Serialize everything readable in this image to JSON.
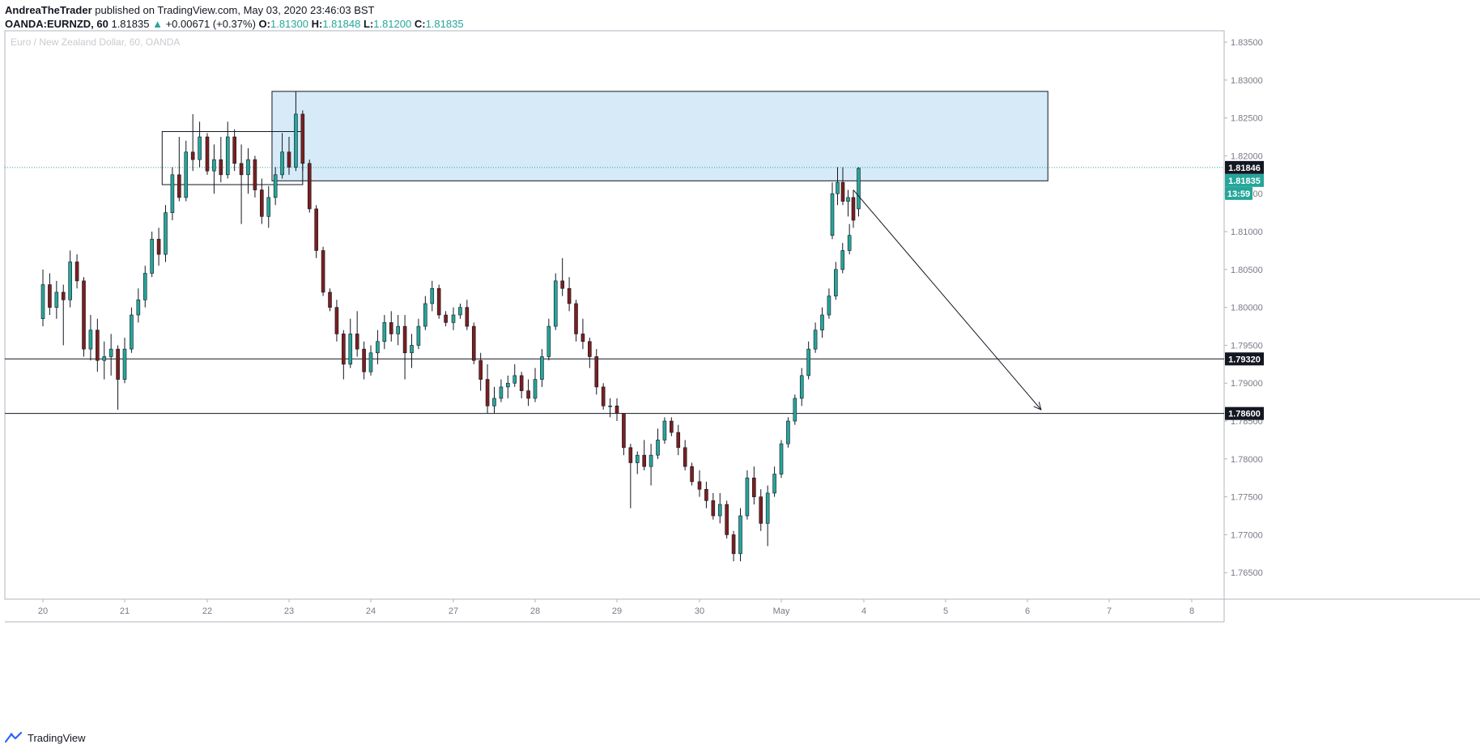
{
  "header": {
    "author": "AndreaTheTrader",
    "published_text": "published on TradingView.com, May 03, 2020 23:46:03 BST"
  },
  "symbol_line": {
    "symbol": "OANDA:EURNZD, 60",
    "last": "1.81835",
    "arrow": "▲",
    "change": "+0.00671 (+0.37%)",
    "o_label": "O:",
    "o_value": "1.81300",
    "h_label": "H:",
    "h_value": "1.81848",
    "l_label": "L:",
    "l_value": "1.81200",
    "c_label": "C:",
    "c_value": "1.81835"
  },
  "footer": {
    "brand": "TradingView",
    "logo_icon": "tradingview-logo-icon"
  },
  "colors": {
    "up": "#26a69a",
    "down": "#7b1f1f",
    "candle_outline": "#131722",
    "zone_fill": "#d6eaf8",
    "zone_stroke": "#131722",
    "price_line": "#26a69a",
    "axis_text": "#787b86",
    "label_dark": "#131722"
  },
  "chart_data": {
    "type": "candlestick",
    "title": "Euro / New Zealand Dollar, 60, OANDA",
    "x_tick_labels": [
      "20",
      "21",
      "22",
      "23",
      "24",
      "27",
      "28",
      "29",
      "30",
      "May",
      "4",
      "5",
      "6",
      "7",
      "8"
    ],
    "y_tick_labels": [
      "1.83500",
      "1.83000",
      "1.82500",
      "1.82000",
      "1.81500",
      "1.81000",
      "1.80500",
      "1.80000",
      "1.79500",
      "1.79000",
      "1.78500",
      "1.78000",
      "1.77500",
      "1.77000",
      "1.76500"
    ],
    "ylim": [
      1.7615,
      1.8365
    ],
    "price_labels": [
      {
        "text": "1.81846",
        "value": 1.81846,
        "style": "dark"
      },
      {
        "text": "1.81835",
        "value": 1.81835,
        "style": "green"
      },
      {
        "text": "13:59",
        "style": "green-timer"
      },
      {
        "text": "1.79320",
        "value": 1.7932,
        "style": "dark"
      },
      {
        "text": "1.78600",
        "value": 1.786,
        "style": "dark"
      }
    ],
    "horizontal_lines": [
      1.7932,
      1.786
    ],
    "dotted_line": 1.81846,
    "last_price": 1.81835,
    "resistance_zone": {
      "x0": "Apr 22 19:00",
      "x1": "May 6 06:00",
      "y0": 1.8285,
      "y1": 1.8167
    },
    "consolidation_box": {
      "x0": "Apr 21 11:00",
      "x1": "Apr 23 04:00",
      "y0": 1.8232,
      "y1": 1.8162
    },
    "arrow": {
      "x0": "May 3 23:00",
      "y0": 1.8155,
      "x1": "May 6 04:00",
      "y1": 1.7865
    },
    "candles": [
      {
        "t": "Apr 20 00:00",
        "o": 1.7985,
        "h": 1.805,
        "l": 1.7975,
        "c": 1.803
      },
      {
        "t": "Apr 20 02:00",
        "o": 1.803,
        "h": 1.8045,
        "l": 1.799,
        "c": 1.8,
        "dir": "down"
      },
      {
        "t": "Apr 20 04:00",
        "o": 1.8,
        "h": 1.8035,
        "l": 1.7985,
        "c": 1.802
      },
      {
        "t": "Apr 20 06:00",
        "o": 1.802,
        "h": 1.803,
        "l": 1.795,
        "c": 1.801,
        "dir": "down"
      },
      {
        "t": "Apr 20 08:00",
        "o": 1.801,
        "h": 1.8075,
        "l": 1.8,
        "c": 1.806
      },
      {
        "t": "Apr 20 10:00",
        "o": 1.806,
        "h": 1.807,
        "l": 1.8025,
        "c": 1.8035,
        "dir": "down"
      },
      {
        "t": "Apr 20 12:00",
        "o": 1.8035,
        "h": 1.804,
        "l": 1.7935,
        "c": 1.7945,
        "dir": "down"
      },
      {
        "t": "Apr 20 14:00",
        "o": 1.7945,
        "h": 1.799,
        "l": 1.793,
        "c": 1.797
      },
      {
        "t": "Apr 20 16:00",
        "o": 1.797,
        "h": 1.7985,
        "l": 1.7915,
        "c": 1.793,
        "dir": "down"
      },
      {
        "t": "Apr 20 18:00",
        "o": 1.793,
        "h": 1.7955,
        "l": 1.7905,
        "c": 1.7935
      },
      {
        "t": "Apr 20 20:00",
        "o": 1.7935,
        "h": 1.7965,
        "l": 1.791,
        "c": 1.7945
      },
      {
        "t": "Apr 20 22:00",
        "o": 1.7945,
        "h": 1.795,
        "l": 1.7865,
        "c": 1.7905,
        "dir": "down"
      },
      {
        "t": "Apr 21 00:00",
        "o": 1.7905,
        "h": 1.796,
        "l": 1.79,
        "c": 1.7945
      },
      {
        "t": "Apr 21 02:00",
        "o": 1.7945,
        "h": 1.8,
        "l": 1.794,
        "c": 1.799
      },
      {
        "t": "Apr 21 04:00",
        "o": 1.799,
        "h": 1.8025,
        "l": 1.798,
        "c": 1.801
      },
      {
        "t": "Apr 21 06:00",
        "o": 1.801,
        "h": 1.8055,
        "l": 1.8,
        "c": 1.8045
      },
      {
        "t": "Apr 21 08:00",
        "o": 1.8045,
        "h": 1.81,
        "l": 1.804,
        "c": 1.809
      },
      {
        "t": "Apr 21 10:00",
        "o": 1.809,
        "h": 1.8105,
        "l": 1.8055,
        "c": 1.807,
        "dir": "down"
      },
      {
        "t": "Apr 21 12:00",
        "o": 1.807,
        "h": 1.8135,
        "l": 1.806,
        "c": 1.8125
      },
      {
        "t": "Apr 21 14:00",
        "o": 1.8125,
        "h": 1.8185,
        "l": 1.8115,
        "c": 1.8175
      },
      {
        "t": "Apr 21 16:00",
        "o": 1.8175,
        "h": 1.8225,
        "l": 1.814,
        "c": 1.8145,
        "dir": "down"
      },
      {
        "t": "Apr 21 18:00",
        "o": 1.8145,
        "h": 1.822,
        "l": 1.814,
        "c": 1.8205
      },
      {
        "t": "Apr 21 20:00",
        "o": 1.8205,
        "h": 1.8255,
        "l": 1.818,
        "c": 1.8195,
        "dir": "down"
      },
      {
        "t": "Apr 21 22:00",
        "o": 1.8195,
        "h": 1.8245,
        "l": 1.8185,
        "c": 1.8225
      },
      {
        "t": "Apr 22 00:00",
        "o": 1.8225,
        "h": 1.823,
        "l": 1.8175,
        "c": 1.818,
        "dir": "down"
      },
      {
        "t": "Apr 22 02:00",
        "o": 1.818,
        "h": 1.8215,
        "l": 1.815,
        "c": 1.8195
      },
      {
        "t": "Apr 22 04:00",
        "o": 1.8195,
        "h": 1.8225,
        "l": 1.8165,
        "c": 1.8175,
        "dir": "down"
      },
      {
        "t": "Apr 22 06:00",
        "o": 1.8175,
        "h": 1.8245,
        "l": 1.817,
        "c": 1.8225
      },
      {
        "t": "Apr 22 08:00",
        "o": 1.8225,
        "h": 1.8235,
        "l": 1.818,
        "c": 1.819,
        "dir": "down"
      },
      {
        "t": "Apr 22 10:00",
        "o": 1.819,
        "h": 1.8215,
        "l": 1.811,
        "c": 1.8175,
        "dir": "down"
      },
      {
        "t": "Apr 22 12:00",
        "o": 1.8175,
        "h": 1.821,
        "l": 1.815,
        "c": 1.8195
      },
      {
        "t": "Apr 22 14:00",
        "o": 1.8195,
        "h": 1.82,
        "l": 1.8145,
        "c": 1.8155,
        "dir": "down"
      },
      {
        "t": "Apr 22 16:00",
        "o": 1.8155,
        "h": 1.817,
        "l": 1.811,
        "c": 1.812,
        "dir": "down"
      },
      {
        "t": "Apr 22 18:00",
        "o": 1.812,
        "h": 1.816,
        "l": 1.8105,
        "c": 1.8145
      },
      {
        "t": "Apr 22 20:00",
        "o": 1.8145,
        "h": 1.8185,
        "l": 1.8135,
        "c": 1.8175
      },
      {
        "t": "Apr 22 22:00",
        "o": 1.8175,
        "h": 1.823,
        "l": 1.817,
        "c": 1.8205
      },
      {
        "t": "Apr 23 00:00",
        "o": 1.8205,
        "h": 1.8225,
        "l": 1.8175,
        "c": 1.8185,
        "dir": "down"
      },
      {
        "t": "Apr 23 02:00",
        "o": 1.8185,
        "h": 1.8285,
        "l": 1.818,
        "c": 1.8255
      },
      {
        "t": "Apr 23 04:00",
        "o": 1.8255,
        "h": 1.826,
        "l": 1.818,
        "c": 1.819,
        "dir": "down"
      },
      {
        "t": "Apr 23 06:00",
        "o": 1.819,
        "h": 1.8195,
        "l": 1.8125,
        "c": 1.813,
        "dir": "down"
      },
      {
        "t": "Apr 23 08:00",
        "o": 1.813,
        "h": 1.8135,
        "l": 1.8065,
        "c": 1.8075,
        "dir": "down"
      },
      {
        "t": "Apr 23 10:00",
        "o": 1.8075,
        "h": 1.808,
        "l": 1.8015,
        "c": 1.802,
        "dir": "down"
      },
      {
        "t": "Apr 23 12:00",
        "o": 1.802,
        "h": 1.8025,
        "l": 1.7995,
        "c": 1.8,
        "dir": "down"
      },
      {
        "t": "Apr 23 14:00",
        "o": 1.8,
        "h": 1.801,
        "l": 1.7955,
        "c": 1.7965,
        "dir": "down"
      },
      {
        "t": "Apr 23 16:00",
        "o": 1.7965,
        "h": 1.797,
        "l": 1.7905,
        "c": 1.7925,
        "dir": "down"
      },
      {
        "t": "Apr 23 18:00",
        "o": 1.7925,
        "h": 1.7985,
        "l": 1.792,
        "c": 1.7965
      },
      {
        "t": "Apr 23 20:00",
        "o": 1.7965,
        "h": 1.7995,
        "l": 1.7935,
        "c": 1.7945,
        "dir": "down"
      },
      {
        "t": "Apr 23 22:00",
        "o": 1.7945,
        "h": 1.7955,
        "l": 1.7905,
        "c": 1.7915,
        "dir": "down"
      },
      {
        "t": "Apr 24 00:00",
        "o": 1.7915,
        "h": 1.795,
        "l": 1.791,
        "c": 1.794
      },
      {
        "t": "Apr 24 02:00",
        "o": 1.794,
        "h": 1.797,
        "l": 1.7925,
        "c": 1.7955
      },
      {
        "t": "Apr 24 04:00",
        "o": 1.7955,
        "h": 1.799,
        "l": 1.7945,
        "c": 1.798
      },
      {
        "t": "Apr 24 06:00",
        "o": 1.798,
        "h": 1.7995,
        "l": 1.7955,
        "c": 1.7965,
        "dir": "down"
      },
      {
        "t": "Apr 24 08:00",
        "o": 1.7965,
        "h": 1.799,
        "l": 1.795,
        "c": 1.7975
      },
      {
        "t": "Apr 24 10:00",
        "o": 1.7975,
        "h": 1.799,
        "l": 1.7905,
        "c": 1.794,
        "dir": "down"
      },
      {
        "t": "Apr 24 12:00",
        "o": 1.794,
        "h": 1.7965,
        "l": 1.792,
        "c": 1.795
      },
      {
        "t": "Apr 24 14:00",
        "o": 1.795,
        "h": 1.7985,
        "l": 1.7945,
        "c": 1.7975
      },
      {
        "t": "Apr 24 16:00",
        "o": 1.7975,
        "h": 1.8015,
        "l": 1.797,
        "c": 1.8005
      },
      {
        "t": "Apr 24 18:00",
        "o": 1.8005,
        "h": 1.8035,
        "l": 1.7995,
        "c": 1.8025
      },
      {
        "t": "Apr 24 20:00",
        "o": 1.8025,
        "h": 1.803,
        "l": 1.7985,
        "c": 1.799,
        "dir": "down"
      },
      {
        "t": "Apr 24 22:00",
        "o": 1.799,
        "h": 1.7995,
        "l": 1.7975,
        "c": 1.798,
        "dir": "down"
      },
      {
        "t": "Apr 27 00:00",
        "o": 1.798,
        "h": 1.8,
        "l": 1.797,
        "c": 1.799
      },
      {
        "t": "Apr 27 02:00",
        "o": 1.799,
        "h": 1.8005,
        "l": 1.7985,
        "c": 1.8
      },
      {
        "t": "Apr 27 04:00",
        "o": 1.8,
        "h": 1.801,
        "l": 1.797,
        "c": 1.7975,
        "dir": "down"
      },
      {
        "t": "Apr 27 06:00",
        "o": 1.7975,
        "h": 1.798,
        "l": 1.7925,
        "c": 1.793,
        "dir": "down"
      },
      {
        "t": "Apr 27 08:00",
        "o": 1.793,
        "h": 1.794,
        "l": 1.789,
        "c": 1.7905,
        "dir": "down"
      },
      {
        "t": "Apr 27 10:00",
        "o": 1.7905,
        "h": 1.7925,
        "l": 1.786,
        "c": 1.787,
        "dir": "down"
      },
      {
        "t": "Apr 27 12:00",
        "o": 1.787,
        "h": 1.7895,
        "l": 1.786,
        "c": 1.788
      },
      {
        "t": "Apr 27 14:00",
        "o": 1.788,
        "h": 1.7905,
        "l": 1.7875,
        "c": 1.7895
      },
      {
        "t": "Apr 27 16:00",
        "o": 1.7895,
        "h": 1.791,
        "l": 1.788,
        "c": 1.79
      },
      {
        "t": "Apr 27 18:00",
        "o": 1.79,
        "h": 1.7925,
        "l": 1.7895,
        "c": 1.791
      },
      {
        "t": "Apr 27 20:00",
        "o": 1.791,
        "h": 1.7915,
        "l": 1.788,
        "c": 1.789,
        "dir": "down"
      },
      {
        "t": "Apr 27 22:00",
        "o": 1.789,
        "h": 1.7905,
        "l": 1.787,
        "c": 1.788,
        "dir": "down"
      },
      {
        "t": "Apr 28 00:00",
        "o": 1.788,
        "h": 1.792,
        "l": 1.7875,
        "c": 1.7905
      },
      {
        "t": "Apr 28 02:00",
        "o": 1.7905,
        "h": 1.7945,
        "l": 1.7895,
        "c": 1.7935
      },
      {
        "t": "Apr 28 04:00",
        "o": 1.7935,
        "h": 1.7985,
        "l": 1.793,
        "c": 1.7975
      },
      {
        "t": "Apr 28 06:00",
        "o": 1.7975,
        "h": 1.8045,
        "l": 1.797,
        "c": 1.8035
      },
      {
        "t": "Apr 28 08:00",
        "o": 1.8035,
        "h": 1.8065,
        "l": 1.8015,
        "c": 1.8025,
        "dir": "down"
      },
      {
        "t": "Apr 28 10:00",
        "o": 1.8025,
        "h": 1.804,
        "l": 1.7995,
        "c": 1.8005,
        "dir": "down"
      },
      {
        "t": "Apr 28 12:00",
        "o": 1.8005,
        "h": 1.801,
        "l": 1.7955,
        "c": 1.7965,
        "dir": "down"
      },
      {
        "t": "Apr 28 14:00",
        "o": 1.7965,
        "h": 1.7985,
        "l": 1.7945,
        "c": 1.7955,
        "dir": "down"
      },
      {
        "t": "Apr 28 16:00",
        "o": 1.7955,
        "h": 1.796,
        "l": 1.792,
        "c": 1.7935,
        "dir": "down"
      },
      {
        "t": "Apr 28 18:00",
        "o": 1.7935,
        "h": 1.7945,
        "l": 1.7885,
        "c": 1.7895,
        "dir": "down"
      },
      {
        "t": "Apr 28 20:00",
        "o": 1.7895,
        "h": 1.79,
        "l": 1.7865,
        "c": 1.787,
        "dir": "down"
      },
      {
        "t": "Apr 28 22:00",
        "o": 1.787,
        "h": 1.788,
        "l": 1.7855,
        "c": 1.787
      },
      {
        "t": "Apr 29 00:00",
        "o": 1.787,
        "h": 1.788,
        "l": 1.785,
        "c": 1.786,
        "dir": "down"
      },
      {
        "t": "Apr 29 02:00",
        "o": 1.786,
        "h": 1.786,
        "l": 1.7805,
        "c": 1.7815,
        "dir": "down"
      },
      {
        "t": "Apr 29 04:00",
        "o": 1.7815,
        "h": 1.782,
        "l": 1.7735,
        "c": 1.7795,
        "dir": "down"
      },
      {
        "t": "Apr 29 06:00",
        "o": 1.7795,
        "h": 1.781,
        "l": 1.778,
        "c": 1.7805
      },
      {
        "t": "Apr 29 08:00",
        "o": 1.7805,
        "h": 1.7825,
        "l": 1.7785,
        "c": 1.779,
        "dir": "down"
      },
      {
        "t": "Apr 29 10:00",
        "o": 1.779,
        "h": 1.782,
        "l": 1.7765,
        "c": 1.7805
      },
      {
        "t": "Apr 29 12:00",
        "o": 1.7805,
        "h": 1.784,
        "l": 1.78,
        "c": 1.7825
      },
      {
        "t": "Apr 29 14:00",
        "o": 1.7825,
        "h": 1.7855,
        "l": 1.782,
        "c": 1.785
      },
      {
        "t": "Apr 29 16:00",
        "o": 1.785,
        "h": 1.7855,
        "l": 1.783,
        "c": 1.7835,
        "dir": "down"
      },
      {
        "t": "Apr 29 18:00",
        "o": 1.7835,
        "h": 1.7845,
        "l": 1.7805,
        "c": 1.7815,
        "dir": "down"
      },
      {
        "t": "Apr 29 20:00",
        "o": 1.7815,
        "h": 1.7825,
        "l": 1.7785,
        "c": 1.779,
        "dir": "down"
      },
      {
        "t": "Apr 29 22:00",
        "o": 1.779,
        "h": 1.7795,
        "l": 1.7765,
        "c": 1.777,
        "dir": "down"
      },
      {
        "t": "Apr 30 00:00",
        "o": 1.777,
        "h": 1.7785,
        "l": 1.775,
        "c": 1.776,
        "dir": "down"
      },
      {
        "t": "Apr 30 02:00",
        "o": 1.776,
        "h": 1.777,
        "l": 1.7735,
        "c": 1.7745,
        "dir": "down"
      },
      {
        "t": "Apr 30 04:00",
        "o": 1.7745,
        "h": 1.7755,
        "l": 1.772,
        "c": 1.7725,
        "dir": "down"
      },
      {
        "t": "Apr 30 06:00",
        "o": 1.7725,
        "h": 1.7755,
        "l": 1.7715,
        "c": 1.774
      },
      {
        "t": "Apr 30 08:00",
        "o": 1.774,
        "h": 1.7745,
        "l": 1.7695,
        "c": 1.77,
        "dir": "down"
      },
      {
        "t": "Apr 30 10:00",
        "o": 1.77,
        "h": 1.7705,
        "l": 1.7665,
        "c": 1.7675,
        "dir": "down"
      },
      {
        "t": "Apr 30 12:00",
        "o": 1.7675,
        "h": 1.7735,
        "l": 1.7665,
        "c": 1.7725
      },
      {
        "t": "Apr 30 14:00",
        "o": 1.7725,
        "h": 1.7785,
        "l": 1.772,
        "c": 1.7775
      },
      {
        "t": "Apr 30 16:00",
        "o": 1.7775,
        "h": 1.779,
        "l": 1.774,
        "c": 1.775,
        "dir": "down"
      },
      {
        "t": "Apr 30 18:00",
        "o": 1.775,
        "h": 1.776,
        "l": 1.7705,
        "c": 1.7715,
        "dir": "down"
      },
      {
        "t": "Apr 30 20:00",
        "o": 1.7715,
        "h": 1.7765,
        "l": 1.7685,
        "c": 1.7755
      },
      {
        "t": "Apr 30 22:00",
        "o": 1.7755,
        "h": 1.779,
        "l": 1.775,
        "c": 1.778
      },
      {
        "t": "May 1 00:00",
        "o": 1.778,
        "h": 1.7825,
        "l": 1.7775,
        "c": 1.782
      },
      {
        "t": "May 1 02:00",
        "o": 1.782,
        "h": 1.7855,
        "l": 1.7815,
        "c": 1.785
      },
      {
        "t": "May 1 04:00",
        "o": 1.785,
        "h": 1.7885,
        "l": 1.7845,
        "c": 1.788
      },
      {
        "t": "May 1 06:00",
        "o": 1.788,
        "h": 1.792,
        "l": 1.787,
        "c": 1.791
      },
      {
        "t": "May 1 08:00",
        "o": 1.791,
        "h": 1.7955,
        "l": 1.7905,
        "c": 1.7945
      },
      {
        "t": "May 1 10:00",
        "o": 1.7945,
        "h": 1.798,
        "l": 1.794,
        "c": 1.797
      },
      {
        "t": "May 1 12:00",
        "o": 1.797,
        "h": 1.8,
        "l": 1.796,
        "c": 1.799
      },
      {
        "t": "May 1 14:00",
        "o": 1.799,
        "h": 1.8025,
        "l": 1.7985,
        "c": 1.8015
      },
      {
        "t": "May 1 16:00",
        "o": 1.8015,
        "h": 1.806,
        "l": 1.801,
        "c": 1.805
      },
      {
        "t": "May 1 18:00",
        "o": 1.805,
        "h": 1.8085,
        "l": 1.8045,
        "c": 1.8075
      },
      {
        "t": "May 1 20:00",
        "o": 1.8075,
        "h": 1.811,
        "l": 1.807,
        "c": 1.8095
      },
      {
        "t": "May 3 21:00",
        "o": 1.8095,
        "h": 1.8165,
        "l": 1.809,
        "c": 1.815
      },
      {
        "t": "May 3 21:30",
        "o": 1.815,
        "h": 1.8185,
        "l": 1.8135,
        "c": 1.8165
      },
      {
        "t": "May 3 22:00",
        "o": 1.8165,
        "h": 1.8185,
        "l": 1.8135,
        "c": 1.814,
        "dir": "down"
      },
      {
        "t": "May 3 22:30",
        "o": 1.814,
        "h": 1.8155,
        "l": 1.812,
        "c": 1.8145
      },
      {
        "t": "May 3 23:00",
        "o": 1.8145,
        "h": 1.8155,
        "l": 1.8105,
        "c": 1.8115,
        "dir": "down"
      },
      {
        "t": "May 3 23:30",
        "o": 1.813,
        "h": 1.81848,
        "l": 1.812,
        "c": 1.81835
      }
    ]
  }
}
